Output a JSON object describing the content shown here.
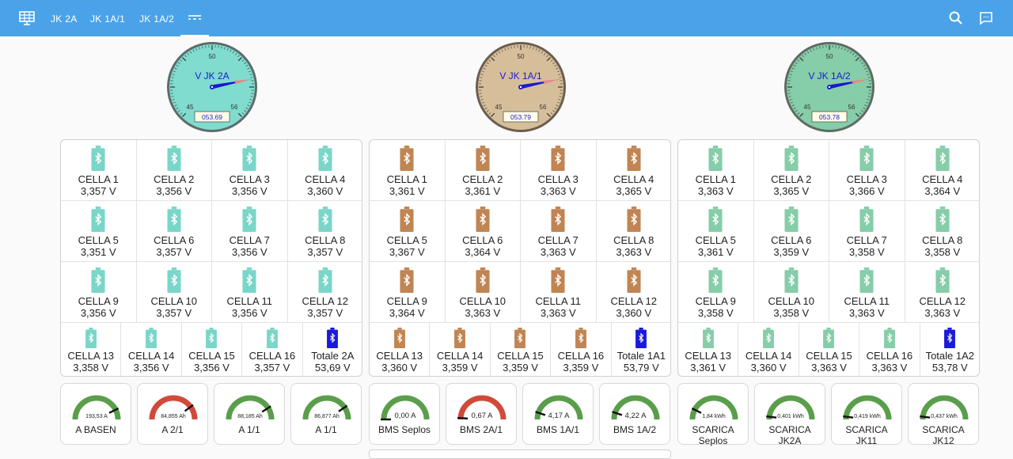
{
  "nav": {
    "tabs": [
      "JK 2A",
      "JK 1A/1",
      "JK 1A/2"
    ],
    "active_icon": "dashes-icon"
  },
  "gauges": [
    {
      "title": "V JK 2A",
      "value": "053.69",
      "top_tick": "50",
      "left_tick": "45",
      "right_tick": "56",
      "face": "#7fdccf",
      "rim": "#5e6b6a",
      "needle_deg": 68
    },
    {
      "title": "V JK 1A/1",
      "value": "053.79",
      "top_tick": "50",
      "left_tick": "45",
      "right_tick": "56",
      "face": "#d7be9a",
      "rim": "#6b5e4e",
      "needle_deg": 70
    },
    {
      "title": "V JK 1A/2",
      "value": "053.78",
      "top_tick": "50",
      "left_tick": "45",
      "right_tick": "56",
      "face": "#86cda9",
      "rim": "#5e6b64",
      "needle_deg": 70
    }
  ],
  "panels": [
    {
      "color": "#7ad6c8",
      "cells": [
        {
          "name": "CELLA 1",
          "value": "3,357 V"
        },
        {
          "name": "CELLA 2",
          "value": "3,356 V"
        },
        {
          "name": "CELLA 3",
          "value": "3,356 V"
        },
        {
          "name": "CELLA 4",
          "value": "3,360 V"
        },
        {
          "name": "CELLA 5",
          "value": "3,351 V"
        },
        {
          "name": "CELLA 6",
          "value": "3,357 V"
        },
        {
          "name": "CELLA 7",
          "value": "3,356 V"
        },
        {
          "name": "CELLA 8",
          "value": "3,357 V"
        },
        {
          "name": "CELLA 9",
          "value": "3,356 V"
        },
        {
          "name": "CELLA 10",
          "value": "3,357 V"
        },
        {
          "name": "CELLA 11",
          "value": "3,356 V"
        },
        {
          "name": "CELLA 12",
          "value": "3,357 V"
        },
        {
          "name": "CELLA 13",
          "value": "3,358 V"
        },
        {
          "name": "CELLA 14",
          "value": "3,356 V"
        },
        {
          "name": "CELLA 15",
          "value": "3,356 V"
        },
        {
          "name": "CELLA 16",
          "value": "3,357 V"
        }
      ],
      "total": {
        "name": "Totale 2A",
        "value": "53,69 V"
      }
    },
    {
      "color": "#c08553",
      "cells": [
        {
          "name": "CELLA 1",
          "value": "3,361 V"
        },
        {
          "name": "CELLA 2",
          "value": "3,361 V"
        },
        {
          "name": "CELLA 3",
          "value": "3,363 V"
        },
        {
          "name": "CELLA 4",
          "value": "3,365 V"
        },
        {
          "name": "CELLA 5",
          "value": "3,367 V"
        },
        {
          "name": "CELLA 6",
          "value": "3,364 V"
        },
        {
          "name": "CELLA 7",
          "value": "3,363 V"
        },
        {
          "name": "CELLA 8",
          "value": "3,363 V"
        },
        {
          "name": "CELLA 9",
          "value": "3,364 V"
        },
        {
          "name": "CELLA 10",
          "value": "3,363 V"
        },
        {
          "name": "CELLA 11",
          "value": "3,363 V"
        },
        {
          "name": "CELLA 12",
          "value": "3,360 V"
        },
        {
          "name": "CELLA 13",
          "value": "3,360 V"
        },
        {
          "name": "CELLA 14",
          "value": "3,359 V"
        },
        {
          "name": "CELLA 15",
          "value": "3,359 V"
        },
        {
          "name": "CELLA 16",
          "value": "3,359 V"
        }
      ],
      "total": {
        "name": "Totale 1A1",
        "value": "53,79 V"
      }
    },
    {
      "color": "#86cda9",
      "cells": [
        {
          "name": "CELLA 1",
          "value": "3,363 V"
        },
        {
          "name": "CELLA 2",
          "value": "3,365 V"
        },
        {
          "name": "CELLA 3",
          "value": "3,366 V"
        },
        {
          "name": "CELLA 4",
          "value": "3,364 V"
        },
        {
          "name": "CELLA 5",
          "value": "3,361 V"
        },
        {
          "name": "CELLA 6",
          "value": "3,359 V"
        },
        {
          "name": "CELLA 7",
          "value": "3,358 V"
        },
        {
          "name": "CELLA 8",
          "value": "3,358 V"
        },
        {
          "name": "CELLA 9",
          "value": "3,358 V"
        },
        {
          "name": "CELLA 10",
          "value": "3,358 V"
        },
        {
          "name": "CELLA 11",
          "value": "3,363 V"
        },
        {
          "name": "CELLA 12",
          "value": "3,363 V"
        },
        {
          "name": "CELLA 13",
          "value": "3,361 V"
        },
        {
          "name": "CELLA 14",
          "value": "3,360 V"
        },
        {
          "name": "CELLA 15",
          "value": "3,363 V"
        },
        {
          "name": "CELLA 16",
          "value": "3,363 V"
        }
      ],
      "total": {
        "name": "Totale 1A2",
        "value": "53,78 V"
      }
    }
  ],
  "total_color": "#1a1adb",
  "mini_gauges": [
    {
      "name": "A BASEN",
      "value": "193,53 A",
      "arc": "#5a9e4b",
      "level": 0.85
    },
    {
      "name": "A 2/1",
      "value": "84,855 Ah",
      "arc": "#d04a3a",
      "level": 0.8
    },
    {
      "name": "A 1/1",
      "value": "88,185 Ah",
      "arc": "#5a9e4b",
      "level": 0.82
    },
    {
      "name": "A 1/1",
      "value": "86,877 Ah",
      "arc": "#5a9e4b",
      "level": 0.81
    },
    {
      "name": "BMS Seplos",
      "value": "0,00 A",
      "arc": "#5a9e4b",
      "level": 0.0
    },
    {
      "name": "BMS 2A/1",
      "value": "0,67 A",
      "arc": "#d04a3a",
      "level": 0.02
    },
    {
      "name": "BMS 1A/1",
      "value": "4,17 A",
      "arc": "#5a9e4b",
      "level": 0.1
    },
    {
      "name": "BMS 1A/2",
      "value": "4,22 A",
      "arc": "#5a9e4b",
      "level": 0.1
    },
    {
      "name": "SCARICA\nSeplos",
      "value": "1,84 kWh",
      "arc": "#5a9e4b",
      "level": 0.15
    },
    {
      "name": "SCARICA\nJK2A",
      "value": "0,401 kWh",
      "arc": "#5a9e4b",
      "level": 0.04
    },
    {
      "name": "SCARICA\nJK11",
      "value": "0,419 kWh",
      "arc": "#5a9e4b",
      "level": 0.04
    },
    {
      "name": "SCARICA\nJK12",
      "value": "0,437 kWh",
      "arc": "#5a9e4b",
      "level": 0.04
    }
  ]
}
